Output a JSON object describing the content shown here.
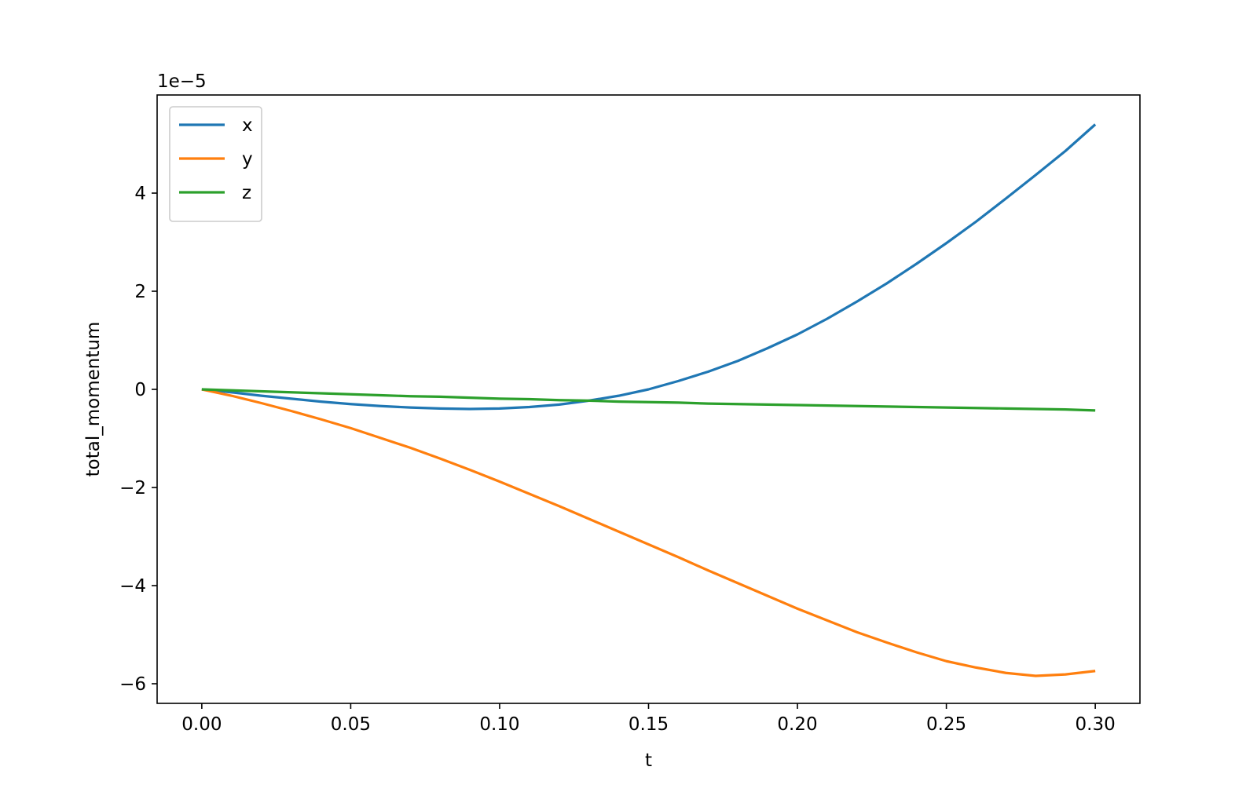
{
  "chart_data": {
    "type": "line",
    "title": "",
    "xlabel": "t",
    "ylabel": "total_momentum",
    "y_offset_text": "1e−5",
    "xlim": [
      -0.015,
      0.315
    ],
    "ylim": [
      -6.4,
      6.0
    ],
    "x_ticks": [
      0.0,
      0.05,
      0.1,
      0.15,
      0.2,
      0.25,
      0.3
    ],
    "x_tick_labels": [
      "0.00",
      "0.05",
      "0.10",
      "0.15",
      "0.20",
      "0.25",
      "0.30"
    ],
    "y_ticks": [
      -6,
      -4,
      -2,
      0,
      2,
      4
    ],
    "y_tick_labels": [
      "−6",
      "−4",
      "−2",
      "0",
      "2",
      "4"
    ],
    "grid": false,
    "legend_position": "top-left",
    "x": [
      0.0,
      0.01,
      0.02,
      0.03,
      0.04,
      0.05,
      0.06,
      0.07,
      0.08,
      0.09,
      0.1,
      0.11,
      0.12,
      0.13,
      0.14,
      0.15,
      0.16,
      0.17,
      0.18,
      0.19,
      0.2,
      0.21,
      0.22,
      0.23,
      0.24,
      0.25,
      0.26,
      0.27,
      0.28,
      0.29,
      0.3
    ],
    "series": [
      {
        "name": "x",
        "color": "#1f77b4",
        "values": [
          0.0,
          -0.06,
          -0.13,
          -0.19,
          -0.25,
          -0.3,
          -0.34,
          -0.37,
          -0.39,
          -0.4,
          -0.39,
          -0.36,
          -0.31,
          -0.23,
          -0.13,
          0.0,
          0.17,
          0.36,
          0.58,
          0.84,
          1.12,
          1.44,
          1.79,
          2.16,
          2.56,
          2.98,
          3.42,
          3.89,
          4.37,
          4.86,
          5.4
        ]
      },
      {
        "name": "y",
        "color": "#ff7f0e",
        "values": [
          0.0,
          -0.13,
          -0.28,
          -0.44,
          -0.61,
          -0.79,
          -0.99,
          -1.19,
          -1.41,
          -1.64,
          -1.88,
          -2.13,
          -2.38,
          -2.64,
          -2.9,
          -3.16,
          -3.42,
          -3.69,
          -3.95,
          -4.21,
          -4.47,
          -4.71,
          -4.95,
          -5.16,
          -5.36,
          -5.54,
          -5.67,
          -5.78,
          -5.84,
          -5.81,
          -5.74
        ]
      },
      {
        "name": "z",
        "color": "#2ca02c",
        "values": [
          0.0,
          -0.02,
          -0.04,
          -0.06,
          -0.08,
          -0.1,
          -0.12,
          -0.14,
          -0.15,
          -0.17,
          -0.19,
          -0.2,
          -0.22,
          -0.23,
          -0.25,
          -0.26,
          -0.27,
          -0.29,
          -0.3,
          -0.31,
          -0.32,
          -0.33,
          -0.34,
          -0.35,
          -0.36,
          -0.37,
          -0.38,
          -0.39,
          -0.4,
          -0.41,
          -0.43
        ]
      }
    ]
  }
}
